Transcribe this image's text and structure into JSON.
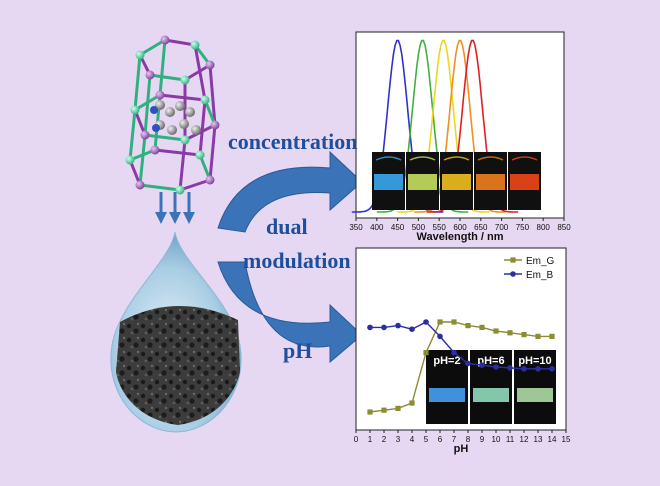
{
  "labels": {
    "concentration": "concentration",
    "dual": "dual",
    "modulation": "modulation",
    "ph": "pH"
  },
  "colors": {
    "background": "#e6d8f2",
    "arrow": "#3a73b8",
    "label": "#1f4e9c",
    "series_g": "#8c8c32",
    "series_b": "#2b2ea0"
  },
  "chart_data": [
    {
      "type": "line",
      "xlabel": "Wavelength / nm",
      "ylabel": "",
      "xlim": [
        350,
        850
      ],
      "xticks": [
        350,
        400,
        450,
        500,
        550,
        600,
        650,
        700,
        750,
        800,
        850
      ],
      "grid": false,
      "series": [
        {
          "color": "#3030d0",
          "peak": 450,
          "width": 50
        },
        {
          "color": "#40b040",
          "peak": 510,
          "width": 50
        },
        {
          "color": "#e8d820",
          "peak": 560,
          "width": 50
        },
        {
          "color": "#f09020",
          "peak": 600,
          "width": 50
        },
        {
          "color": "#e02020",
          "peak": 630,
          "width": 50
        }
      ],
      "inset_photos": [
        "#3aa8f0",
        "#c8e060",
        "#f0c020",
        "#f08020",
        "#f04818"
      ]
    },
    {
      "type": "line",
      "xlabel": "pH",
      "ylabel": "",
      "xlim": [
        0,
        15
      ],
      "xticks": [
        0,
        1,
        2,
        3,
        4,
        5,
        6,
        7,
        8,
        9,
        10,
        11,
        12,
        13,
        14,
        15
      ],
      "ylim": [
        0,
        1
      ],
      "grid": false,
      "legend_position": "top-right",
      "legend": [
        "Em_G",
        "Em_B"
      ],
      "series": [
        {
          "name": "Em_G",
          "color": "#8c8c32",
          "marker": "square",
          "x": [
            1,
            2,
            3,
            4,
            5,
            6,
            7,
            8,
            9,
            10,
            11,
            12,
            13,
            14
          ],
          "y": [
            0.1,
            0.11,
            0.12,
            0.15,
            0.43,
            0.6,
            0.6,
            0.58,
            0.57,
            0.55,
            0.54,
            0.53,
            0.52,
            0.52
          ]
        },
        {
          "name": "Em_B",
          "color": "#2b2ea0",
          "marker": "circle",
          "x": [
            1,
            2,
            3,
            4,
            5,
            6,
            7,
            8,
            9,
            10,
            11,
            12,
            13,
            14
          ],
          "y": [
            0.57,
            0.57,
            0.58,
            0.56,
            0.6,
            0.52,
            0.43,
            0.37,
            0.36,
            0.35,
            0.345,
            0.34,
            0.34,
            0.34
          ]
        }
      ],
      "inset_labels": [
        "pH=2",
        "pH=6",
        "pH=10"
      ],
      "inset_photos": [
        "#4aa8ff",
        "#9ae8c8",
        "#b8e8b0"
      ]
    }
  ]
}
